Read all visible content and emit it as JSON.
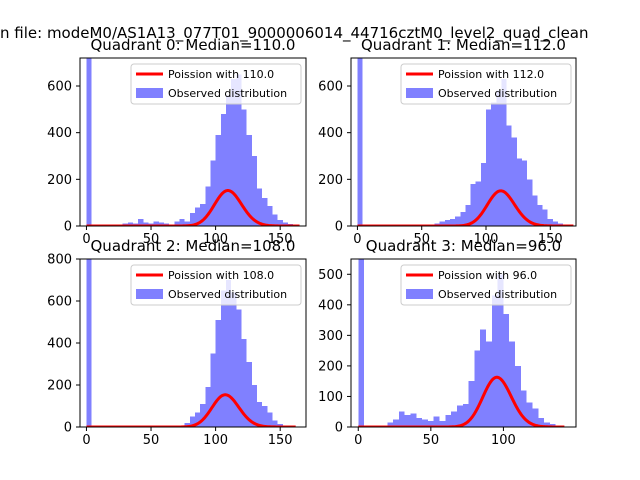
{
  "figure": {
    "suptitle": "n file: modeM0/AS1A13_077T01_9000006014_44716cztM0_level2_quad_clean"
  },
  "colors": {
    "histogram": "#8080ff",
    "poisson_line": "#ff0000",
    "axis": "#000000",
    "background": "#ffffff"
  },
  "chart_data": [
    {
      "type": "bar",
      "title": "Quadrant 0: Median=110.0",
      "bin_width": 4,
      "xlim": [
        -5,
        170
      ],
      "ylim": [
        0,
        720
      ],
      "xticks": [
        0,
        50,
        100,
        150
      ],
      "yticks": [
        0,
        200,
        400,
        600
      ],
      "grid": false,
      "legend_position": "upper-right",
      "legend": [
        "Poission with 110.0",
        "Observed distribution"
      ],
      "histogram": {
        "name": "Observed distribution",
        "bin_starts": [
          0,
          24,
          28,
          32,
          36,
          40,
          44,
          48,
          52,
          56,
          60,
          64,
          68,
          72,
          76,
          80,
          84,
          88,
          92,
          96,
          100,
          104,
          108,
          112,
          116,
          120,
          124,
          128,
          132,
          136,
          140,
          144,
          148,
          152,
          156,
          160
        ],
        "values": [
          720,
          5,
          10,
          15,
          10,
          30,
          15,
          10,
          20,
          15,
          10,
          5,
          20,
          30,
          20,
          55,
          80,
          95,
          170,
          280,
          390,
          480,
          560,
          630,
          650,
          500,
          390,
          300,
          160,
          120,
          85,
          50,
          25,
          15,
          8,
          4
        ]
      },
      "poisson": {
        "name": "Poission with 110.0",
        "mean": 110.0,
        "scale": 4000,
        "x_range": [
          0,
          165
        ]
      }
    },
    {
      "type": "bar",
      "title": "Quadrant 1: Median=112.0",
      "bin_width": 4,
      "xlim": [
        -5,
        170
      ],
      "ylim": [
        0,
        720
      ],
      "xticks": [
        0,
        50,
        100,
        150
      ],
      "yticks": [
        0,
        200,
        400,
        600
      ],
      "grid": false,
      "legend_position": "upper-right",
      "legend": [
        "Poission with 112.0",
        "Observed distribution"
      ],
      "histogram": {
        "name": "Observed distribution",
        "bin_starts": [
          0,
          60,
          64,
          68,
          72,
          76,
          80,
          84,
          88,
          92,
          96,
          100,
          104,
          108,
          112,
          116,
          120,
          124,
          128,
          132,
          136,
          140,
          144,
          148,
          152,
          156
        ],
        "values": [
          720,
          10,
          20,
          25,
          30,
          40,
          60,
          90,
          180,
          190,
          270,
          500,
          530,
          580,
          630,
          430,
          380,
          290,
          280,
          200,
          130,
          90,
          70,
          30,
          20,
          10
        ]
      },
      "poisson": {
        "name": "Poission with 112.0",
        "mean": 112.0,
        "scale": 4000,
        "x_range": [
          0,
          168
        ]
      }
    },
    {
      "type": "bar",
      "title": "Quadrant 2: Median=108.0",
      "bin_width": 4,
      "xlim": [
        -5,
        170
      ],
      "ylim": [
        0,
        800
      ],
      "xticks": [
        0,
        50,
        100,
        150
      ],
      "yticks": [
        0,
        200,
        400,
        600,
        800
      ],
      "grid": false,
      "legend_position": "upper-right",
      "legend": [
        "Poission with 108.0",
        "Observed distribution"
      ],
      "histogram": {
        "name": "Observed distribution",
        "bin_starts": [
          0,
          76,
          80,
          84,
          88,
          92,
          96,
          100,
          104,
          108,
          112,
          116,
          120,
          124,
          128,
          132,
          136,
          140,
          144,
          148,
          152
        ],
        "values": [
          800,
          20,
          50,
          70,
          110,
          190,
          350,
          510,
          650,
          700,
          640,
          560,
          420,
          310,
          200,
          120,
          100,
          70,
          30,
          15,
          5
        ]
      },
      "poisson": {
        "name": "Poission with 108.0",
        "mean": 108.0,
        "scale": 4000,
        "x_range": [
          0,
          162
        ]
      }
    },
    {
      "type": "bar",
      "title": "Quadrant 3: Median=96.0",
      "bin_width": 4,
      "xlim": [
        -5,
        150
      ],
      "ylim": [
        0,
        550
      ],
      "xticks": [
        0,
        50,
        100
      ],
      "yticks": [
        0,
        100,
        200,
        300,
        400,
        500
      ],
      "grid": false,
      "legend_position": "upper-right",
      "legend": [
        "Poission with 96.0",
        "Observed distribution"
      ],
      "histogram": {
        "name": "Observed distribution",
        "bin_starts": [
          0,
          20,
          24,
          28,
          32,
          36,
          40,
          44,
          48,
          52,
          56,
          60,
          64,
          68,
          72,
          76,
          80,
          84,
          88,
          92,
          96,
          100,
          104,
          108,
          112,
          116,
          120,
          124,
          128,
          132
        ],
        "values": [
          550,
          15,
          25,
          50,
          40,
          45,
          30,
          25,
          20,
          35,
          20,
          40,
          50,
          70,
          75,
          150,
          250,
          320,
          280,
          430,
          500,
          370,
          280,
          200,
          120,
          80,
          60,
          30,
          15,
          10
        ]
      },
      "poisson": {
        "name": "Poission with 96.0",
        "mean": 96.0,
        "scale": 4000,
        "x_range": [
          0,
          142
        ]
      }
    }
  ]
}
